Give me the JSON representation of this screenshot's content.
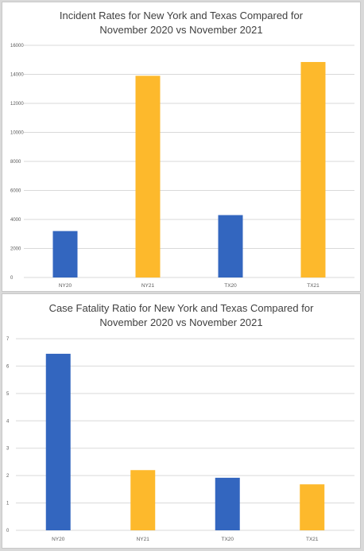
{
  "colors": {
    "blue": "#3366bf",
    "gold": "#fdb92c"
  },
  "chart_data": [
    {
      "type": "bar",
      "title": "Incident Rates for New York and Texas Compared for\nNovember 2020 vs November 2021",
      "categories": [
        "NY20",
        "NY21",
        "TX20",
        "TX21"
      ],
      "values": [
        3200,
        13900,
        4300,
        14850
      ],
      "bar_colors": [
        "blue",
        "gold",
        "blue",
        "gold"
      ],
      "ylim": [
        0,
        16000
      ],
      "yticks": [
        "0",
        "2000",
        "4000",
        "6000",
        "8000",
        "10000",
        "12000",
        "14000",
        "16000"
      ],
      "grid": true,
      "xlabel": "",
      "ylabel": ""
    },
    {
      "type": "bar",
      "title": "Case Fatality Ratio for New York and Texas Compared for\nNovember 2020 vs November 2021",
      "categories": [
        "NY20",
        "NY21",
        "TX20",
        "TX21"
      ],
      "values": [
        6.45,
        2.2,
        1.92,
        1.68
      ],
      "bar_colors": [
        "blue",
        "gold",
        "blue",
        "gold"
      ],
      "ylim": [
        0,
        7
      ],
      "yticks": [
        "0",
        "1",
        "2",
        "3",
        "4",
        "5",
        "6",
        "7"
      ],
      "grid": true,
      "xlabel": "",
      "ylabel": ""
    }
  ]
}
